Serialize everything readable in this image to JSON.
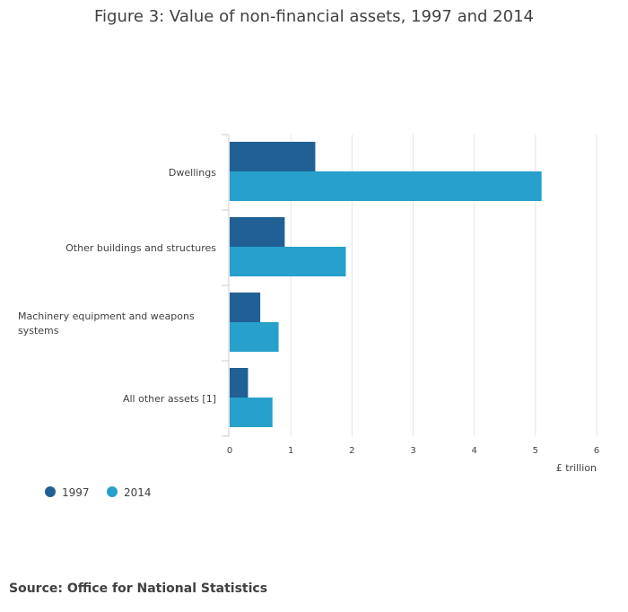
{
  "chart_data": {
    "type": "bar",
    "orientation": "horizontal",
    "title": "Figure 3: Value of non-financial assets, 1997 and 2014",
    "categories": [
      "Dwellings",
      "Other buildings and structures",
      "Machinery equipment and weapons systems",
      "All other assets [1]"
    ],
    "series": [
      {
        "name": "1997",
        "color": "#206095",
        "values": [
          1.4,
          0.9,
          0.5,
          0.3
        ]
      },
      {
        "name": "2014",
        "color": "#27a0cc",
        "values": [
          5.1,
          1.9,
          0.8,
          0.7
        ]
      }
    ],
    "xlabel": "£ trillion",
    "ylabel": "",
    "xlim": [
      0,
      6
    ],
    "ticks": [
      "0",
      "1",
      "2",
      "3",
      "4",
      "5",
      "6"
    ],
    "grid": true,
    "legend_position": "bottom-left"
  },
  "source": "Source: Office for National Statistics"
}
